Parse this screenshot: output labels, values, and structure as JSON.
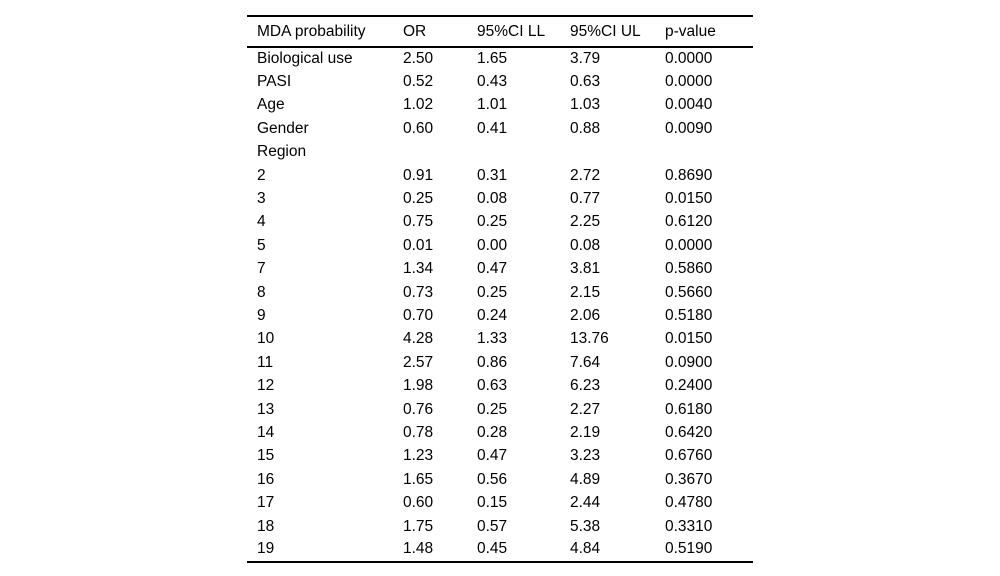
{
  "colors": {
    "background": "#ffffff",
    "text": "#000000",
    "rule": "#000000"
  },
  "table": {
    "columns": [
      "MDA probability",
      "OR",
      "95%CI LL",
      "95%CI UL",
      "p-value"
    ],
    "rows": [
      [
        "Biological use",
        "2.50",
        "1.65",
        "3.79",
        "0.0000"
      ],
      [
        "PASI",
        "0.52",
        "0.43",
        "0.63",
        "0.0000"
      ],
      [
        "Age",
        "1.02",
        "1.01",
        "1.03",
        "0.0040"
      ],
      [
        "Gender",
        "0.60",
        "0.41",
        "0.88",
        "0.0090"
      ],
      [
        "Region",
        "",
        "",
        "",
        ""
      ],
      [
        "2",
        "0.91",
        "0.31",
        "2.72",
        "0.8690"
      ],
      [
        "3",
        "0.25",
        "0.08",
        "0.77",
        "0.0150"
      ],
      [
        "4",
        "0.75",
        "0.25",
        "2.25",
        "0.6120"
      ],
      [
        "5",
        "0.01",
        "0.00",
        "0.08",
        "0.0000"
      ],
      [
        "7",
        "1.34",
        "0.47",
        "3.81",
        "0.5860"
      ],
      [
        "8",
        "0.73",
        "0.25",
        "2.15",
        "0.5660"
      ],
      [
        "9",
        "0.70",
        "0.24",
        "2.06",
        "0.5180"
      ],
      [
        "10",
        "4.28",
        "1.33",
        "13.76",
        "0.0150"
      ],
      [
        "11",
        "2.57",
        "0.86",
        "7.64",
        "0.0900"
      ],
      [
        "12",
        "1.98",
        "0.63",
        "6.23",
        "0.2400"
      ],
      [
        "13",
        "0.76",
        "0.25",
        "2.27",
        "0.6180"
      ],
      [
        "14",
        "0.78",
        "0.28",
        "2.19",
        "0.6420"
      ],
      [
        "15",
        "1.23",
        "0.47",
        "3.23",
        "0.6760"
      ],
      [
        "16",
        "1.65",
        "0.56",
        "4.89",
        "0.3670"
      ],
      [
        "17",
        "0.60",
        "0.15",
        "2.44",
        "0.4780"
      ],
      [
        "18",
        "1.75",
        "0.57",
        "5.38",
        "0.3310"
      ],
      [
        "19",
        "1.48",
        "0.45",
        "4.84",
        "0.5190"
      ]
    ]
  }
}
